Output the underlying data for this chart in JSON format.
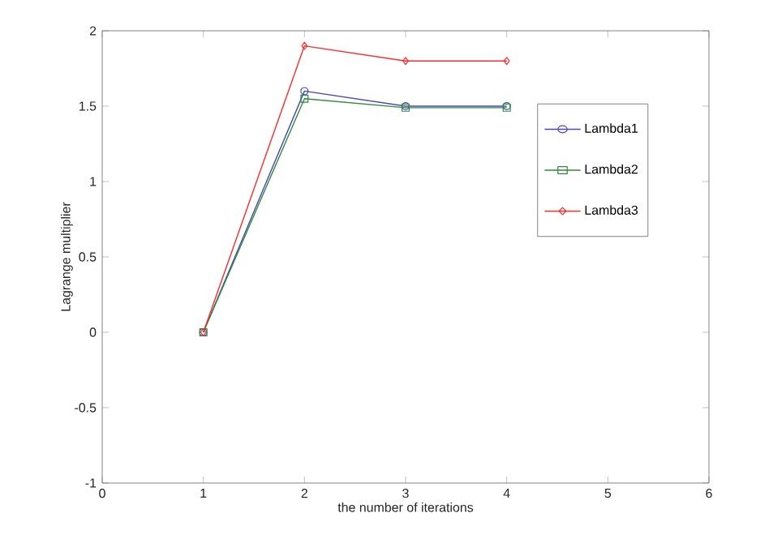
{
  "chart_data": {
    "type": "line",
    "xlabel": "the number of iterations",
    "ylabel": "Lagrange multiplier",
    "x": [
      1,
      2,
      3,
      4
    ],
    "series": [
      {
        "name": "Lambda1",
        "color": "#4848b8",
        "marker": "circle",
        "values": [
          0,
          1.6,
          1.5,
          1.5
        ]
      },
      {
        "name": "Lambda2",
        "color": "#2e8b3a",
        "marker": "square",
        "values": [
          0,
          1.55,
          1.49,
          1.49
        ]
      },
      {
        "name": "Lambda3",
        "color": "#ff2a2a",
        "marker": "diamond",
        "values": [
          0,
          1.9,
          1.8,
          1.8
        ]
      }
    ],
    "xlim": [
      0,
      6
    ],
    "xticks": [
      0,
      1,
      2,
      3,
      4,
      5,
      6
    ],
    "ylim": [
      -1,
      2
    ],
    "yticks": [
      -1,
      -0.5,
      0,
      0.5,
      1,
      1.5,
      2
    ],
    "legend": "right",
    "grid": false,
    "line_style": "solid"
  }
}
